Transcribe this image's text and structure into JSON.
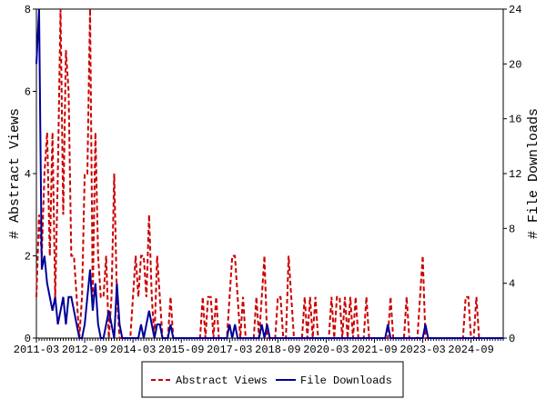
{
  "chart_data": {
    "type": "line",
    "ylabel": "# Abstract Views",
    "y2label": "# File Downloads",
    "categories": [
      "2011-03",
      null,
      null,
      null,
      null,
      null,
      null,
      null,
      null,
      null,
      null,
      null,
      null,
      null,
      null,
      null,
      null,
      null,
      "2012-09",
      null,
      null,
      null,
      null,
      null,
      null,
      null,
      null,
      null,
      null,
      null,
      null,
      null,
      null,
      null,
      null,
      null,
      "2014-03",
      null,
      null,
      null,
      null,
      null,
      null,
      null,
      null,
      null,
      null,
      null,
      null,
      null,
      null,
      null,
      null,
      null,
      "2015-09",
      null,
      null,
      null,
      null,
      null,
      null,
      null,
      null,
      null,
      null,
      null,
      null,
      null,
      null,
      null,
      null,
      null,
      "2017-03",
      null,
      null,
      null,
      null,
      null,
      null,
      null,
      null,
      null,
      null,
      null,
      null,
      null,
      null,
      null,
      null,
      null,
      "2018-09",
      null,
      null,
      null,
      null,
      null,
      null,
      null,
      null,
      null,
      null,
      null,
      null,
      null,
      null,
      null,
      null,
      null,
      "2020-03",
      null,
      null,
      null,
      null,
      null,
      null,
      null,
      null,
      null,
      null,
      null,
      null,
      null,
      null,
      null,
      null,
      null,
      "2021-09",
      null,
      null,
      null,
      null,
      null,
      null,
      null,
      null,
      null,
      null,
      null,
      null,
      null,
      null,
      null,
      null,
      null,
      "2023-03",
      null,
      null,
      null,
      null,
      null,
      null,
      null,
      null,
      null,
      null,
      null,
      null,
      null,
      null,
      null,
      null,
      null,
      "2024-09",
      null,
      null,
      null,
      null,
      null,
      null,
      null,
      null,
      null,
      null,
      null,
      null
    ],
    "series": [
      {
        "name": "Abstract Views",
        "color": "#cc0000",
        "dash": true,
        "axis": "y",
        "values": [
          1,
          3,
          2,
          4,
          5,
          2,
          5,
          1,
          4,
          8,
          3,
          7,
          6,
          2,
          2,
          1,
          0,
          1,
          4,
          4,
          8,
          1,
          5,
          2,
          1,
          1,
          2,
          0,
          1,
          4,
          1,
          0,
          0,
          0,
          0,
          0,
          1,
          2,
          1,
          2,
          2,
          1,
          3,
          1,
          0,
          2,
          1,
          0,
          0,
          0,
          1,
          0,
          0,
          0,
          0,
          0,
          0,
          0,
          0,
          0,
          0,
          0,
          1,
          0,
          1,
          1,
          0,
          1,
          0,
          0,
          0,
          0,
          1,
          2,
          2,
          1,
          0,
          1,
          0,
          0,
          0,
          0,
          1,
          0,
          1,
          2,
          0,
          0,
          0,
          0,
          1,
          1,
          0,
          0,
          2,
          1,
          0,
          0,
          0,
          0,
          1,
          0,
          1,
          0,
          1,
          0,
          0,
          0,
          0,
          0,
          1,
          0,
          1,
          1,
          0,
          1,
          0,
          1,
          0,
          1,
          0,
          0,
          0,
          1,
          0,
          0,
          0,
          0,
          0,
          0,
          0,
          0,
          1,
          0,
          0,
          0,
          0,
          0,
          1,
          0,
          0,
          0,
          0,
          1,
          2,
          0,
          0,
          0,
          0,
          0,
          0,
          0,
          0,
          0,
          0,
          0,
          0,
          0,
          0,
          0,
          1,
          1,
          0,
          0,
          1,
          0,
          0,
          0,
          0,
          0,
          0,
          0,
          0,
          0,
          0
        ]
      },
      {
        "name": "File Downloads",
        "color": "#000099",
        "dash": false,
        "axis": "y2",
        "values": [
          20,
          24,
          5,
          6,
          4,
          3,
          2,
          3,
          1,
          2,
          3,
          1,
          3,
          3,
          2,
          1,
          0,
          0,
          1,
          3,
          5,
          2,
          4,
          1,
          0,
          0,
          1,
          2,
          1,
          0,
          4,
          1,
          0,
          0,
          0,
          0,
          0,
          0,
          0,
          1,
          0,
          1,
          2,
          1,
          0,
          1,
          1,
          0,
          0,
          0,
          1,
          0,
          0,
          0,
          0,
          0,
          0,
          0,
          0,
          0,
          0,
          0,
          0,
          0,
          0,
          0,
          0,
          0,
          0,
          0,
          0,
          0,
          1,
          0,
          1,
          0,
          0,
          0,
          0,
          0,
          0,
          0,
          0,
          0,
          1,
          0,
          1,
          0,
          0,
          0,
          0,
          0,
          0,
          0,
          0,
          0,
          0,
          0,
          0,
          0,
          0,
          0,
          0,
          0,
          0,
          0,
          0,
          0,
          0,
          0,
          0,
          0,
          0,
          0,
          0,
          0,
          0,
          0,
          0,
          0,
          0,
          0,
          0,
          0,
          0,
          0,
          0,
          0,
          0,
          0,
          0,
          1,
          0,
          0,
          0,
          0,
          0,
          0,
          0,
          0,
          0,
          0,
          0,
          0,
          0,
          1,
          0,
          0,
          0,
          0,
          0,
          0,
          0,
          0,
          0,
          0,
          0,
          0,
          0,
          0,
          0,
          0,
          0,
          0,
          0,
          0,
          0,
          0,
          0,
          0,
          0,
          0,
          0,
          0,
          0
        ]
      }
    ],
    "ylim": [
      0,
      8
    ],
    "yticks": [
      0,
      2,
      4,
      6,
      8
    ],
    "y2lim": [
      0,
      24
    ],
    "y2ticks": [
      0,
      4,
      8,
      12,
      16,
      20,
      24
    ]
  }
}
